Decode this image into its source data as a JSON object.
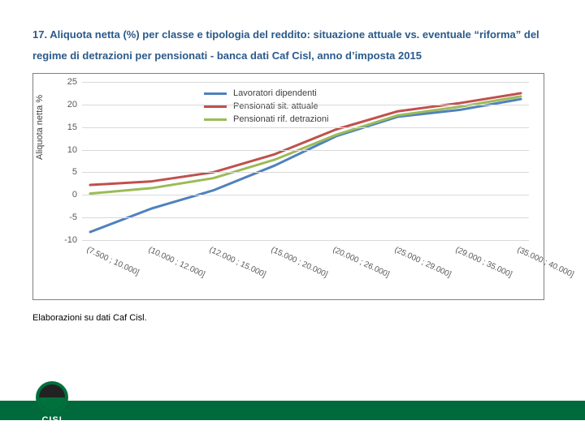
{
  "title": "17. Aliquota netta (%) per classe e tipologia del reddito: situazione attuale vs. eventuale “riforma” del regime di detrazioni per pensionati - banca dati Caf Cisl, anno d’imposta 2015",
  "caption": "Elaborazioni su dati Caf Cisl.",
  "logo_text": "CISL",
  "chart": {
    "type": "line",
    "y_label": "Aliquota netta %",
    "ylim": [
      -10,
      25
    ],
    "ytick_step": 5,
    "yticks": [
      -10,
      -5,
      0,
      5,
      10,
      15,
      20,
      25
    ],
    "categories": [
      "(7.500 ; 10.000]",
      "(10.000 ; 12.000]",
      "(12.000 ; 15.000]",
      "(15.000 ; 20.000]",
      "(20.000 ; 26.000]",
      "(25.000 ; 29.000]",
      "(29.000 ; 35.000]",
      "(35.000 ; 40.000]"
    ],
    "series": [
      {
        "name": "Lavoratori dipendenti",
        "color": "#4f81bd",
        "width": 3,
        "values": [
          -8.2,
          -3.0,
          1.0,
          6.5,
          13.0,
          17.3,
          18.8,
          21.2
        ]
      },
      {
        "name": "Pensionati sit. attuale",
        "color": "#c0504d",
        "width": 3,
        "values": [
          2.2,
          3.0,
          5.0,
          9.0,
          14.5,
          18.5,
          20.3,
          22.5
        ]
      },
      {
        "name": "Pensionati rif. detrazioni",
        "color": "#9bbb59",
        "width": 3,
        "values": [
          0.3,
          1.5,
          3.7,
          7.8,
          13.3,
          17.6,
          19.5,
          21.8
        ]
      }
    ],
    "grid_color": "#d9d9d9",
    "axis_color": "#808080",
    "tick_font_color": "#595959",
    "background": "#ffffff"
  },
  "footer_bar_color": "#006a3d"
}
